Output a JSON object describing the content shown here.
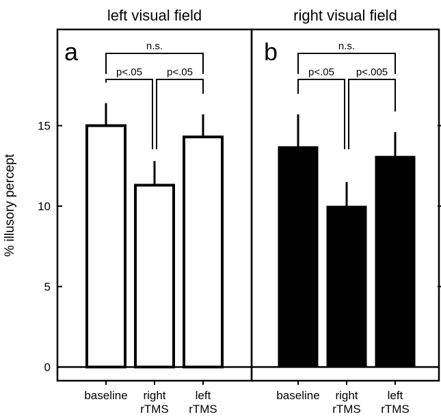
{
  "chart_data": [
    {
      "type": "bar",
      "panel": "a",
      "title": "left visual field",
      "ylabel": "% illusory percept",
      "ylim": [
        0,
        20
      ],
      "yticks": [
        0,
        5,
        10,
        15
      ],
      "categories": [
        [
          "baseline"
        ],
        [
          "right",
          "rTMS"
        ],
        [
          "left",
          "rTMS"
        ]
      ],
      "values": [
        15.0,
        11.3,
        14.3
      ],
      "errors": [
        1.4,
        1.5,
        1.4
      ],
      "bar_fill": "#ffffff",
      "bar_edge": "#000000",
      "significance": [
        {
          "from": 0,
          "to": 1,
          "label": "p<.05"
        },
        {
          "from": 1,
          "to": 2,
          "label": "p<.05"
        },
        {
          "from": 0,
          "to": 2,
          "label": "n.s."
        }
      ]
    },
    {
      "type": "bar",
      "panel": "b",
      "title": "right visual field",
      "ylim": [
        0,
        20
      ],
      "categories": [
        [
          "baseline"
        ],
        [
          "right",
          "rTMS"
        ],
        [
          "left",
          "rTMS"
        ]
      ],
      "values": [
        13.7,
        10.0,
        13.1
      ],
      "errors": [
        2.0,
        1.5,
        1.5
      ],
      "bar_fill": "#000000",
      "bar_edge": "#000000",
      "significance": [
        {
          "from": 0,
          "to": 1,
          "label": "p<.05"
        },
        {
          "from": 1,
          "to": 2,
          "label": "p<.005"
        },
        {
          "from": 0,
          "to": 2,
          "label": "n.s."
        }
      ]
    }
  ]
}
